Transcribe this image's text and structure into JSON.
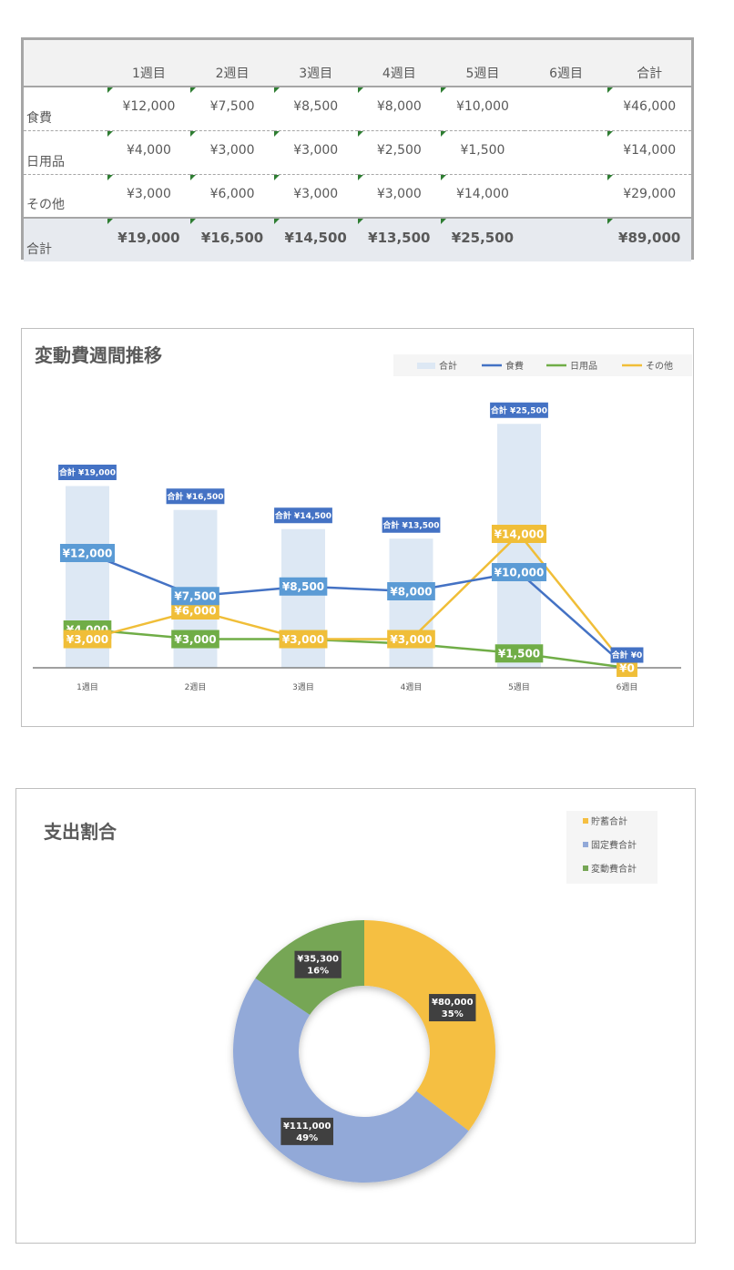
{
  "table": {
    "headers": [
      "",
      "1週目",
      "2週目",
      "3週目",
      "4週目",
      "5週目",
      "6週目",
      "合計"
    ],
    "rows": [
      {
        "label": "食費",
        "cells": [
          "¥12,000",
          "¥7,500",
          "¥8,500",
          "¥8,000",
          "¥10,000",
          "",
          "¥46,000"
        ]
      },
      {
        "label": "日用品",
        "cells": [
          "¥4,000",
          "¥3,000",
          "¥3,000",
          "¥2,500",
          "¥1,500",
          "",
          "¥14,000"
        ]
      },
      {
        "label": "その他",
        "cells": [
          "¥3,000",
          "¥6,000",
          "¥3,000",
          "¥3,000",
          "¥14,000",
          "",
          "¥29,000"
        ]
      }
    ],
    "total": {
      "label": "合計",
      "cells": [
        "¥19,000",
        "¥16,500",
        "¥14,500",
        "¥13,500",
        "¥25,500",
        "",
        "¥89,000"
      ]
    }
  },
  "chart_data": [
    {
      "type": "bar+line",
      "title": "変動費週間推移",
      "categories": [
        "1週目",
        "2週目",
        "3週目",
        "4週目",
        "5週目",
        "6週目"
      ],
      "bar_series": {
        "name": "合計",
        "values": [
          19000,
          16500,
          14500,
          13500,
          25500,
          0
        ],
        "labels": [
          "合計 ¥19,000",
          "合計 ¥16,500",
          "合計 ¥14,500",
          "合計 ¥13,500",
          "合計 ¥25,500",
          "合計 ¥0"
        ]
      },
      "line_series": [
        {
          "name": "食費",
          "values": [
            12000,
            7500,
            8500,
            8000,
            10000,
            0
          ],
          "labels": [
            "¥12,000",
            "¥7,500",
            "¥8,500",
            "¥8,000",
            "¥10,000",
            ""
          ]
        },
        {
          "name": "日用品",
          "values": [
            4000,
            3000,
            3000,
            2500,
            1500,
            0
          ],
          "labels": [
            "¥4,000",
            "¥3,000",
            "¥3,000",
            "",
            "¥1,500",
            ""
          ]
        },
        {
          "name": "その他",
          "values": [
            3000,
            6000,
            3000,
            3000,
            14000,
            0
          ],
          "labels": [
            "¥3,000",
            "¥6,000",
            "¥3,000",
            "¥3,000",
            "¥14,000",
            "¥0"
          ]
        }
      ],
      "ylim": [
        0,
        28000
      ],
      "legend_position": "top-right",
      "grid": false,
      "colors": {
        "合計": "#dde8f4",
        "食費": "#4472c4",
        "日用品": "#70ad47",
        "その他": "#f0be38",
        "bar_label_bg": "#4472c4",
        "food_label_bg": "#5b9bd5"
      }
    },
    {
      "type": "pie",
      "style": "donut",
      "title": "支出割合",
      "categories": [
        "貯蓄合計",
        "固定費合計",
        "変動費合計"
      ],
      "values": [
        80000,
        111000,
        35300
      ],
      "value_labels": [
        "¥80,000",
        "¥111,000",
        "¥35,300"
      ],
      "percent_labels": [
        "35%",
        "49%",
        "16%"
      ],
      "legend_position": "top-right",
      "colors": [
        "#f5bf42",
        "#92a9d8",
        "#76a655"
      ]
    }
  ]
}
